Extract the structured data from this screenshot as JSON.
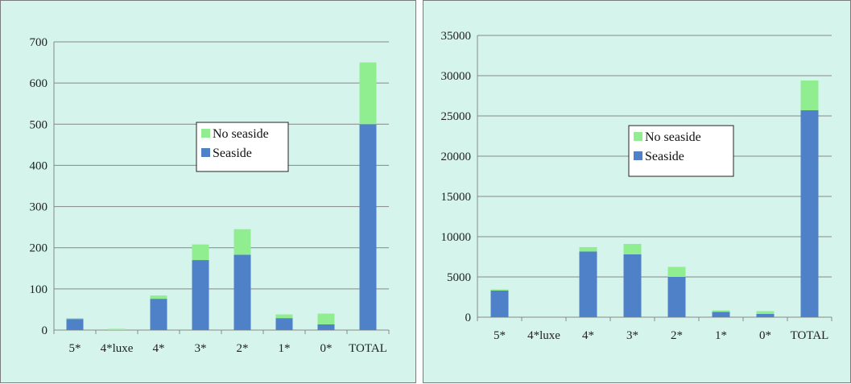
{
  "colors": {
    "seaside": "#4f81c8",
    "no_seaside": "#90ee90",
    "panel_bg": "#d5f5ec",
    "axis": "#868686",
    "grid": "#868686"
  },
  "chart_data": [
    {
      "type": "bar",
      "stacked": true,
      "categories": [
        "5*",
        "4*luxe",
        "4*",
        "3*",
        "2*",
        "1*",
        "0*",
        "TOTAL"
      ],
      "series": [
        {
          "name": "Seaside",
          "values": [
            27,
            0,
            76,
            170,
            183,
            29,
            14,
            500
          ]
        },
        {
          "name": "No seaside",
          "values": [
            2,
            3,
            8,
            38,
            62,
            9,
            26,
            150
          ]
        }
      ],
      "ylim": [
        0,
        700
      ],
      "yticks": [
        "0",
        "100",
        "200",
        "300",
        "400",
        "500",
        "600",
        "700"
      ],
      "grid": true,
      "legend": {
        "placement": "center",
        "entries": [
          "No seaside",
          "Seaside"
        ]
      }
    },
    {
      "type": "bar",
      "stacked": true,
      "categories": [
        "5*",
        "4*luxe",
        "4*",
        "3*",
        "2*",
        "1*",
        "0*",
        "TOTAL"
      ],
      "series": [
        {
          "name": "Seaside",
          "values": [
            3300,
            0,
            8150,
            7800,
            5000,
            650,
            400,
            25700
          ]
        },
        {
          "name": "No seaside",
          "values": [
            150,
            0,
            550,
            1300,
            1250,
            200,
            350,
            3700
          ]
        }
      ],
      "ylim": [
        0,
        35000
      ],
      "yticks": [
        "0",
        "5000",
        "10000",
        "15000",
        "20000",
        "25000",
        "30000",
        "35000"
      ],
      "grid": true,
      "legend": {
        "placement": "center",
        "entries": [
          "No seaside",
          "Seaside"
        ]
      }
    }
  ]
}
